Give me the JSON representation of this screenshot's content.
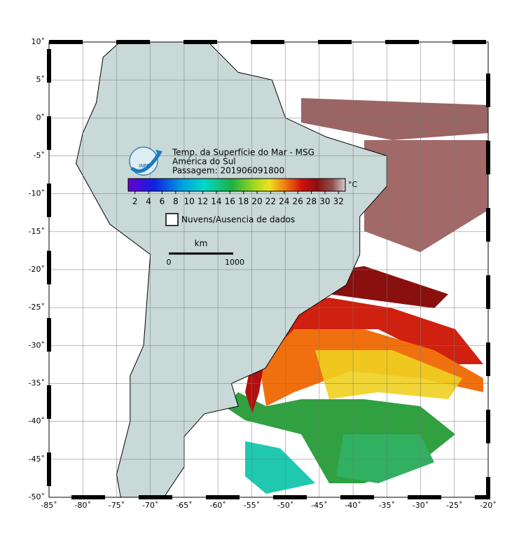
{
  "map": {
    "title": "Temp. da Superfície do Mar - MSG",
    "region": "América do Sul",
    "pass": "Passagem: 201906091800",
    "colorbar": {
      "unit": "°C",
      "range": [
        1,
        33
      ],
      "ticks": [
        2,
        4,
        6,
        8,
        10,
        12,
        14,
        16,
        18,
        20,
        22,
        24,
        26,
        28,
        30,
        32
      ]
    },
    "cloud_legend": "Nuvens/Ausencia de dados",
    "scale": {
      "unit": "km",
      "start": "0",
      "end": "1000"
    },
    "xlim": [
      -85,
      -20
    ],
    "ylim": [
      -50,
      10
    ],
    "xticks": [
      {
        "value": -85,
        "label": "-85˚"
      },
      {
        "value": -80,
        "label": "-80˚"
      },
      {
        "value": -75,
        "label": "-75˚"
      },
      {
        "value": -70,
        "label": "-70˚"
      },
      {
        "value": -65,
        "label": "-65˚"
      },
      {
        "value": -60,
        "label": "-60˚"
      },
      {
        "value": -55,
        "label": "-55˚"
      },
      {
        "value": -50,
        "label": "-50˚"
      },
      {
        "value": -45,
        "label": "-45˚"
      },
      {
        "value": -40,
        "label": "-40˚"
      },
      {
        "value": -35,
        "label": "-35˚"
      },
      {
        "value": -30,
        "label": "-30˚"
      },
      {
        "value": -25,
        "label": "-25˚"
      },
      {
        "value": -20,
        "label": "-20˚"
      }
    ],
    "yticks": [
      {
        "value": 10,
        "label": "10˚"
      },
      {
        "value": 5,
        "label": "5˚"
      },
      {
        "value": 0,
        "label": "0˚"
      },
      {
        "value": -5,
        "label": "-5˚"
      },
      {
        "value": -10,
        "label": "-10˚"
      },
      {
        "value": -15,
        "label": "-15˚"
      },
      {
        "value": -20,
        "label": "-20˚"
      },
      {
        "value": -25,
        "label": "-25˚"
      },
      {
        "value": -30,
        "label": "-30˚"
      },
      {
        "value": -35,
        "label": "-35˚"
      },
      {
        "value": -40,
        "label": "-40˚"
      },
      {
        "value": -45,
        "label": "-45˚"
      },
      {
        "value": -50,
        "label": "-50˚"
      }
    ]
  }
}
